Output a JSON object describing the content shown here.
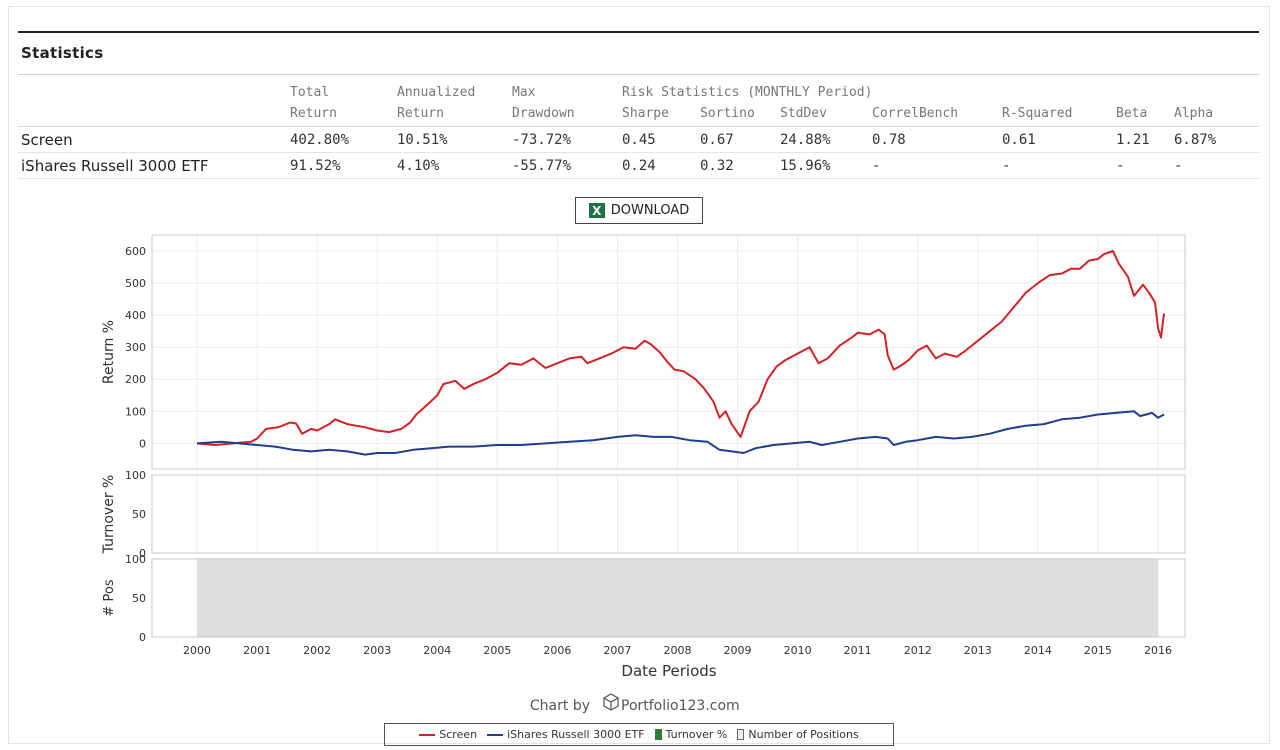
{
  "section_title": "Statistics",
  "stats": {
    "header_top": [
      "Total",
      "Annualized",
      "Max",
      "Risk Statistics (MONTHLY Period)",
      "",
      "",
      "",
      "",
      "",
      ""
    ],
    "header_bottom": [
      "Return",
      "Return",
      "Drawdown",
      "Sharpe",
      "Sortino",
      "StdDev",
      "CorrelBench",
      "R-Squared",
      "Beta",
      "Alpha"
    ],
    "rows": [
      {
        "name": "Screen",
        "total_return": "402.80%",
        "annualized_return": "10.51%",
        "max_drawdown": "-73.72%",
        "sharpe": "0.45",
        "sortino": "0.67",
        "stddev": "24.88%",
        "correl_bench": "0.78",
        "r_squared": "0.61",
        "beta": "1.21",
        "alpha": "6.87%"
      },
      {
        "name": "iShares Russell 3000 ETF",
        "total_return": "91.52%",
        "annualized_return": "4.10%",
        "max_drawdown": "-55.77%",
        "sharpe": "0.24",
        "sortino": "0.32",
        "stddev": "15.96%",
        "correl_bench": "-",
        "r_squared": "-",
        "beta": "-",
        "alpha": "-"
      }
    ]
  },
  "download_label": "DOWNLOAD",
  "download_icon": "excel-icon",
  "credit": {
    "prefix": "Chart by",
    "brand": "Portfolio123.com",
    "icon": "cube-icon"
  },
  "legend": {
    "items": [
      "Screen",
      "iShares Russell 3000 ETF",
      "Turnover %",
      "Number of Positions"
    ]
  },
  "colors": {
    "screen": "#d42027",
    "benchmark": "#1f3d8f",
    "turnover": "#2e7d32",
    "positions_fill": "#dedede",
    "negative": "#c0392b"
  },
  "chart_data": [
    {
      "type": "line",
      "panel": "return",
      "ylabel": "Return %",
      "ylim": [
        -80,
        650
      ],
      "yticks": [
        0,
        100,
        200,
        300,
        400,
        500,
        600
      ],
      "xlabel": "Date Periods",
      "xticks": [
        2000,
        2001,
        2002,
        2003,
        2004,
        2005,
        2006,
        2007,
        2008,
        2009,
        2010,
        2011,
        2012,
        2013,
        2014,
        2015,
        2016
      ],
      "xtick_labels": [
        "2000",
        "2001",
        "2002",
        "2003",
        "2004",
        "2005",
        "2006",
        "2007",
        "2008",
        "2009",
        "2010",
        "2011",
        "2012",
        "2013",
        "2014",
        "2015",
        "2016"
      ],
      "xlim": [
        1999.25,
        2016.45
      ],
      "series": [
        {
          "name": "Screen",
          "color": "#d42027",
          "points": [
            [
              2000.0,
              0
            ],
            [
              2000.3,
              -5
            ],
            [
              2000.6,
              0
            ],
            [
              2000.9,
              5
            ],
            [
              2001.0,
              15
            ],
            [
              2001.15,
              45
            ],
            [
              2001.35,
              50
            ],
            [
              2001.55,
              65
            ],
            [
              2001.65,
              62
            ],
            [
              2001.75,
              30
            ],
            [
              2001.9,
              45
            ],
            [
              2002.0,
              40
            ],
            [
              2002.2,
              60
            ],
            [
              2002.3,
              75
            ],
            [
              2002.5,
              60
            ],
            [
              2002.8,
              50
            ],
            [
              2003.0,
              40
            ],
            [
              2003.2,
              35
            ],
            [
              2003.4,
              45
            ],
            [
              2003.55,
              65
            ],
            [
              2003.65,
              90
            ],
            [
              2003.8,
              115
            ],
            [
              2004.0,
              150
            ],
            [
              2004.1,
              185
            ],
            [
              2004.3,
              195
            ],
            [
              2004.45,
              170
            ],
            [
              2004.6,
              185
            ],
            [
              2004.8,
              200
            ],
            [
              2005.0,
              220
            ],
            [
              2005.2,
              250
            ],
            [
              2005.4,
              245
            ],
            [
              2005.6,
              265
            ],
            [
              2005.8,
              235
            ],
            [
              2006.0,
              250
            ],
            [
              2006.2,
              265
            ],
            [
              2006.4,
              270
            ],
            [
              2006.5,
              250
            ],
            [
              2006.7,
              265
            ],
            [
              2006.9,
              280
            ],
            [
              2007.1,
              300
            ],
            [
              2007.3,
              295
            ],
            [
              2007.45,
              320
            ],
            [
              2007.55,
              310
            ],
            [
              2007.7,
              285
            ],
            [
              2007.85,
              250
            ],
            [
              2007.95,
              230
            ],
            [
              2008.1,
              225
            ],
            [
              2008.3,
              200
            ],
            [
              2008.45,
              170
            ],
            [
              2008.6,
              130
            ],
            [
              2008.7,
              80
            ],
            [
              2008.8,
              100
            ],
            [
              2008.9,
              60
            ],
            [
              2009.05,
              20
            ],
            [
              2009.2,
              100
            ],
            [
              2009.35,
              130
            ],
            [
              2009.5,
              200
            ],
            [
              2009.65,
              240
            ],
            [
              2009.8,
              260
            ],
            [
              2010.0,
              280
            ],
            [
              2010.2,
              300
            ],
            [
              2010.35,
              250
            ],
            [
              2010.5,
              265
            ],
            [
              2010.7,
              305
            ],
            [
              2010.9,
              330
            ],
            [
              2011.0,
              345
            ],
            [
              2011.2,
              340
            ],
            [
              2011.35,
              355
            ],
            [
              2011.45,
              340
            ],
            [
              2011.5,
              275
            ],
            [
              2011.6,
              230
            ],
            [
              2011.7,
              240
            ],
            [
              2011.85,
              260
            ],
            [
              2012.0,
              290
            ],
            [
              2012.15,
              305
            ],
            [
              2012.3,
              265
            ],
            [
              2012.45,
              280
            ],
            [
              2012.65,
              270
            ],
            [
              2012.8,
              290
            ],
            [
              2013.0,
              320
            ],
            [
              2013.2,
              350
            ],
            [
              2013.4,
              380
            ],
            [
              2013.6,
              425
            ],
            [
              2013.8,
              470
            ],
            [
              2014.0,
              500
            ],
            [
              2014.2,
              525
            ],
            [
              2014.4,
              530
            ],
            [
              2014.55,
              545
            ],
            [
              2014.7,
              545
            ],
            [
              2014.85,
              570
            ],
            [
              2015.0,
              575
            ],
            [
              2015.1,
              590
            ],
            [
              2015.25,
              600
            ],
            [
              2015.35,
              560
            ],
            [
              2015.5,
              520
            ],
            [
              2015.6,
              460
            ],
            [
              2015.75,
              495
            ],
            [
              2015.85,
              470
            ],
            [
              2015.95,
              440
            ],
            [
              2016.0,
              360
            ],
            [
              2016.05,
              330
            ],
            [
              2016.1,
              405
            ]
          ]
        },
        {
          "name": "iShares Russell 3000 ETF",
          "color": "#1f3d8f",
          "points": [
            [
              2000.0,
              0
            ],
            [
              2000.4,
              5
            ],
            [
              2000.7,
              0
            ],
            [
              2001.0,
              -5
            ],
            [
              2001.3,
              -10
            ],
            [
              2001.6,
              -20
            ],
            [
              2001.9,
              -25
            ],
            [
              2002.2,
              -20
            ],
            [
              2002.5,
              -25
            ],
            [
              2002.8,
              -35
            ],
            [
              2003.0,
              -30
            ],
            [
              2003.3,
              -30
            ],
            [
              2003.6,
              -20
            ],
            [
              2003.9,
              -15
            ],
            [
              2004.2,
              -10
            ],
            [
              2004.6,
              -10
            ],
            [
              2005.0,
              -5
            ],
            [
              2005.4,
              -5
            ],
            [
              2005.8,
              0
            ],
            [
              2006.2,
              5
            ],
            [
              2006.6,
              10
            ],
            [
              2007.0,
              20
            ],
            [
              2007.3,
              25
            ],
            [
              2007.6,
              20
            ],
            [
              2007.9,
              20
            ],
            [
              2008.2,
              10
            ],
            [
              2008.5,
              5
            ],
            [
              2008.7,
              -20
            ],
            [
              2008.9,
              -25
            ],
            [
              2009.1,
              -30
            ],
            [
              2009.3,
              -15
            ],
            [
              2009.6,
              -5
            ],
            [
              2009.9,
              0
            ],
            [
              2010.2,
              5
            ],
            [
              2010.4,
              -5
            ],
            [
              2010.7,
              5
            ],
            [
              2011.0,
              15
            ],
            [
              2011.3,
              20
            ],
            [
              2011.5,
              15
            ],
            [
              2011.6,
              -5
            ],
            [
              2011.8,
              5
            ],
            [
              2012.0,
              10
            ],
            [
              2012.3,
              20
            ],
            [
              2012.6,
              15
            ],
            [
              2012.9,
              20
            ],
            [
              2013.2,
              30
            ],
            [
              2013.5,
              45
            ],
            [
              2013.8,
              55
            ],
            [
              2014.1,
              60
            ],
            [
              2014.4,
              75
            ],
            [
              2014.7,
              80
            ],
            [
              2015.0,
              90
            ],
            [
              2015.3,
              95
            ],
            [
              2015.6,
              100
            ],
            [
              2015.7,
              85
            ],
            [
              2015.9,
              95
            ],
            [
              2016.0,
              80
            ],
            [
              2016.1,
              90
            ]
          ]
        }
      ]
    },
    {
      "type": "bar",
      "panel": "turnover",
      "ylabel": "Turnover %",
      "ylim": [
        0,
        100
      ],
      "yticks": [
        0,
        50,
        100
      ],
      "series": [
        {
          "name": "Turnover %",
          "color": "#2e7d32",
          "values": []
        }
      ]
    },
    {
      "type": "area",
      "panel": "positions",
      "ylabel": "# Pos",
      "ylim": [
        0,
        100
      ],
      "yticks": [
        0,
        50,
        100
      ],
      "series": [
        {
          "name": "Number of Positions",
          "color": "#dedede",
          "x": [
            2000.0,
            2016.0
          ],
          "values": [
            100,
            100
          ]
        }
      ]
    }
  ]
}
